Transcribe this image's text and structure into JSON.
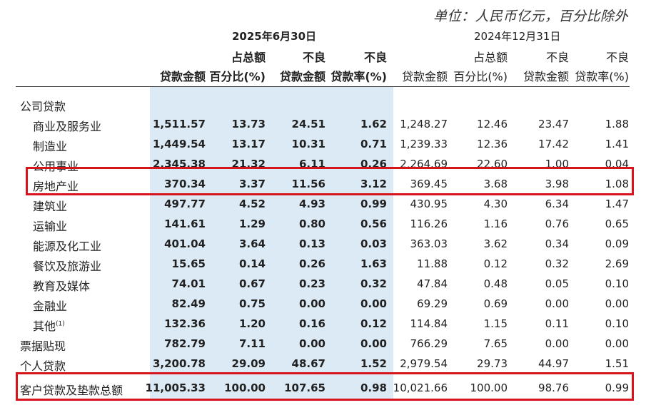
{
  "unit_note": "单位：人民币亿元，百分比除外",
  "periods": [
    "2025年6月30日",
    "2024年12月31日"
  ],
  "headers": {
    "c1": [
      "",
      "贷款金额"
    ],
    "c2": [
      "占总额",
      "百分比(%)"
    ],
    "c3": [
      "不良",
      "贷款金额"
    ],
    "c4": [
      "不良",
      "贷款率(%)"
    ]
  },
  "rows": [
    {
      "label": "公司贷款",
      "indent": false,
      "values": [
        "",
        "",
        "",
        "",
        "",
        "",
        "",
        ""
      ]
    },
    {
      "label": "商业及服务业",
      "indent": true,
      "values": [
        "1,511.57",
        "13.73",
        "24.51",
        "1.62",
        "1,248.27",
        "12.46",
        "23.47",
        "1.88"
      ]
    },
    {
      "label": "制造业",
      "indent": true,
      "values": [
        "1,449.54",
        "13.17",
        "10.31",
        "0.71",
        "1,239.33",
        "12.36",
        "17.42",
        "1.41"
      ]
    },
    {
      "label": "公用事业",
      "indent": true,
      "values": [
        "2,345.38",
        "21.32",
        "6.11",
        "0.26",
        "2,264.69",
        "22.60",
        "1.00",
        "0.04"
      ]
    },
    {
      "label": "房地产业",
      "indent": true,
      "values": [
        "370.34",
        "3.37",
        "11.56",
        "3.12",
        "369.45",
        "3.68",
        "3.98",
        "1.08"
      ]
    },
    {
      "label": "建筑业",
      "indent": true,
      "values": [
        "497.77",
        "4.52",
        "4.93",
        "0.99",
        "430.95",
        "4.30",
        "6.34",
        "1.47"
      ]
    },
    {
      "label": "运输业",
      "indent": true,
      "values": [
        "141.61",
        "1.29",
        "0.80",
        "0.56",
        "116.26",
        "1.16",
        "0.76",
        "0.65"
      ]
    },
    {
      "label": "能源及化工业",
      "indent": true,
      "values": [
        "401.04",
        "3.64",
        "0.13",
        "0.03",
        "363.03",
        "3.62",
        "0.34",
        "0.09"
      ]
    },
    {
      "label": "餐饮及旅游业",
      "indent": true,
      "values": [
        "15.65",
        "0.14",
        "0.26",
        "1.63",
        "11.88",
        "0.12",
        "0.32",
        "2.69"
      ]
    },
    {
      "label": "教育及媒体",
      "indent": true,
      "values": [
        "74.01",
        "0.67",
        "0.23",
        "0.32",
        "47.84",
        "0.48",
        "0.05",
        "0.10"
      ]
    },
    {
      "label": "金融业",
      "indent": true,
      "values": [
        "82.49",
        "0.75",
        "0.00",
        "0.00",
        "69.29",
        "0.69",
        "0.00",
        "0.00"
      ]
    },
    {
      "label": "其他",
      "sup": "(1)",
      "indent": true,
      "values": [
        "132.36",
        "1.20",
        "0.16",
        "0.12",
        "114.84",
        "1.15",
        "0.11",
        "0.10"
      ]
    },
    {
      "label": "票据贴现",
      "indent": false,
      "values": [
        "782.79",
        "7.11",
        "0.00",
        "0.00",
        "766.29",
        "7.65",
        "0.00",
        "0.00"
      ]
    },
    {
      "label": "个人贷款",
      "indent": false,
      "values": [
        "3,200.78",
        "29.09",
        "48.67",
        "1.52",
        "2,979.54",
        "29.73",
        "44.97",
        "1.51"
      ]
    }
  ],
  "total": {
    "label": "客户贷款及垫款总额",
    "values": [
      "11,005.33",
      "100.00",
      "107.65",
      "0.98",
      "10,021.66",
      "100.00",
      "98.76",
      "0.99"
    ]
  },
  "colors": {
    "highlight_bg": "#dbeaf5",
    "box_red": "#d7141c"
  }
}
